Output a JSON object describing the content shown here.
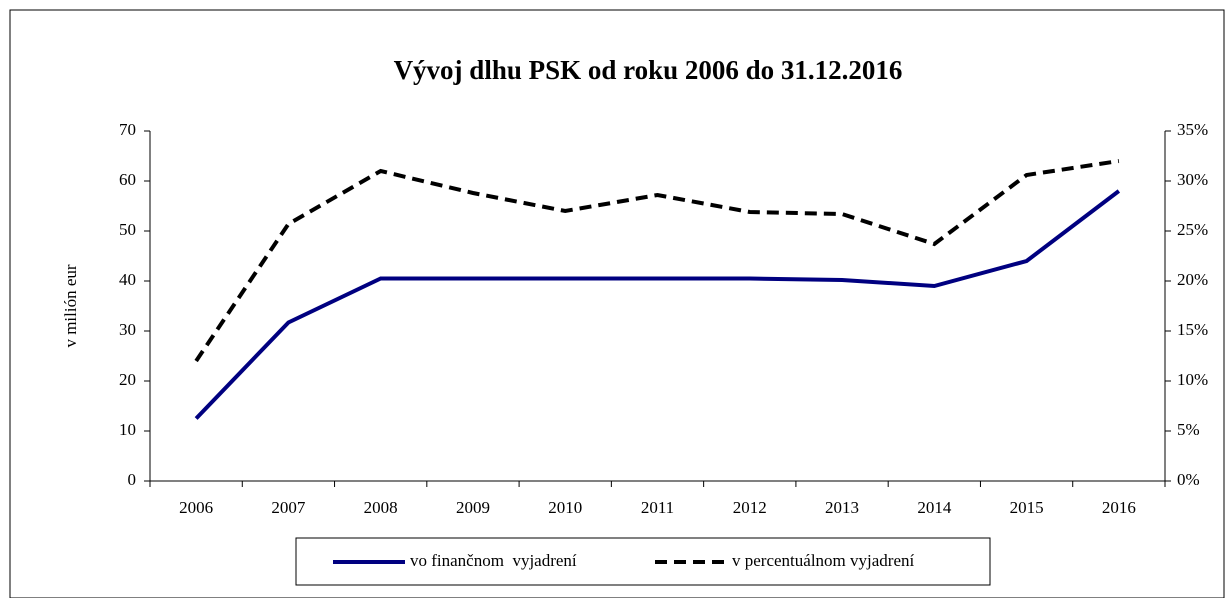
{
  "chart_data": {
    "type": "line",
    "title": "Vývoj dlhu PSK od roku 2006 do 31.12.2016",
    "y_label": "v milión eur",
    "categories": [
      "2006",
      "2007",
      "2008",
      "2009",
      "2010",
      "2011",
      "2012",
      "2013",
      "2014",
      "2015",
      "2016"
    ],
    "series": [
      {
        "name": "vo finančnom  vyjadrení",
        "color": "#000080",
        "dash": "solid",
        "axis": "y",
        "values": [
          12.5,
          31.7,
          40.5,
          40.5,
          40.5,
          40.5,
          40.5,
          40.2,
          39,
          44,
          58
        ]
      },
      {
        "name": "v percentuálnom vyjadrení",
        "color": "#000000",
        "dash": "dashed",
        "axis": "y2",
        "values": [
          12,
          25.7,
          31,
          28.8,
          27,
          28.6,
          26.9,
          26.7,
          23.7,
          30.6,
          32
        ]
      }
    ],
    "ylim": [
      0,
      70
    ],
    "yticks": [
      0,
      10,
      20,
      30,
      40,
      50,
      60,
      70
    ],
    "y2lim": [
      0,
      35
    ],
    "y2ticks": [
      {
        "value": 0,
        "label": "0%"
      },
      {
        "value": 5,
        "label": "5%"
      },
      {
        "value": 10,
        "label": "10%"
      },
      {
        "value": 15,
        "label": "15%"
      },
      {
        "value": 20,
        "label": "20%"
      },
      {
        "value": 25,
        "label": "25%"
      },
      {
        "value": 30,
        "label": "30%"
      },
      {
        "value": 35,
        "label": "35%"
      }
    ],
    "legend": "bottom",
    "grid": false
  }
}
